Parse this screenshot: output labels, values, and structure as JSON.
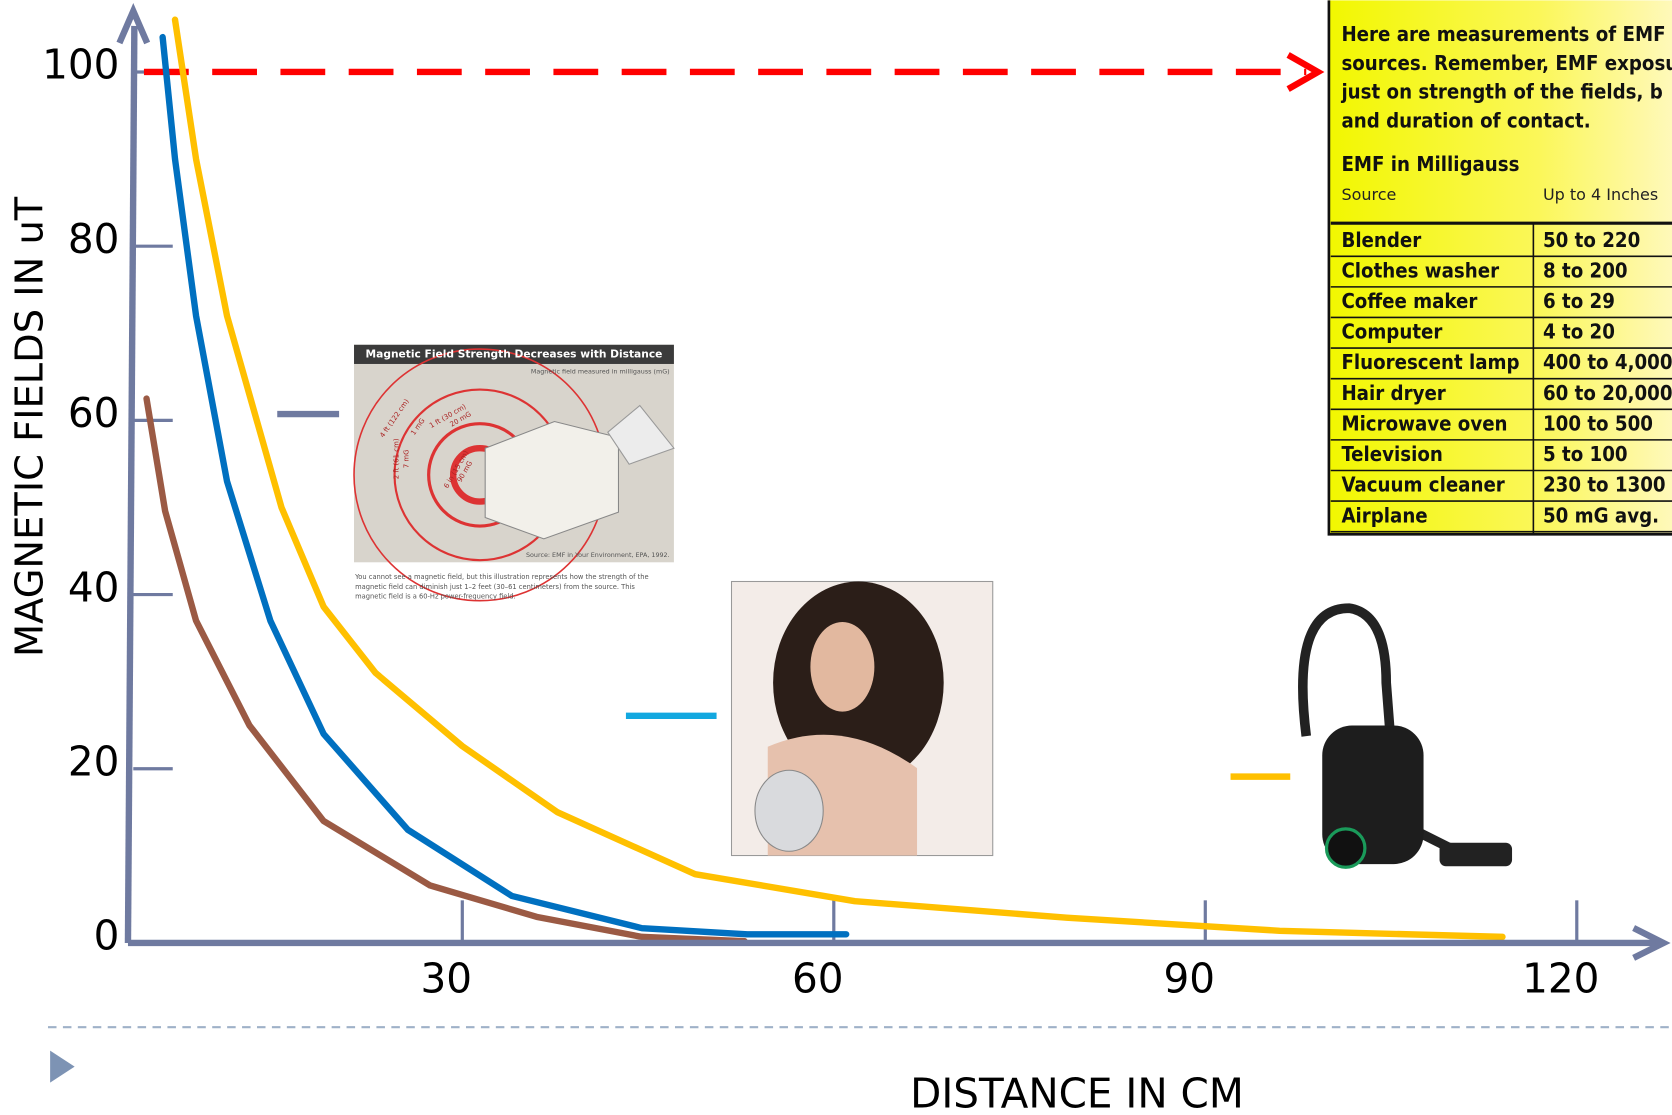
{
  "chart_data": {
    "type": "line",
    "xlabel": "DISTANCE  IN CM",
    "ylabel": "MAGNETIC FIELDS IN uT",
    "xlim": [
      3,
      127
    ],
    "xticks": [
      30,
      60,
      90,
      120
    ],
    "ylim": [
      0,
      107
    ],
    "yticks": [
      0,
      20,
      40,
      60,
      80,
      100
    ],
    "reference_line": {
      "y": 100,
      "color": "#ff0000"
    },
    "axis_color": "#6f7aa0",
    "series": [
      {
        "color": "#0070c0",
        "x": [
          5.8,
          6.8,
          8.5,
          11,
          14.5,
          18.8,
          25.6,
          34,
          44.5,
          53,
          61
        ],
        "values": [
          104,
          90,
          72,
          53,
          37,
          24,
          13,
          5.4,
          1.7,
          1,
          1
        ]
      },
      {
        "color": "#ffc000",
        "x": [
          6.8,
          8.5,
          11,
          15.4,
          18.8,
          23,
          30,
          37.7,
          48.8,
          61.7,
          78.8,
          96,
          114
        ],
        "values": [
          106,
          90,
          72,
          50,
          38.6,
          31,
          22.6,
          15,
          7.9,
          4.8,
          2.9,
          1.4,
          0.7
        ]
      },
      {
        "color": "#9b5a44",
        "x": [
          4.5,
          6,
          8.5,
          12.8,
          18.8,
          27.4,
          36,
          44.5,
          52.8
        ],
        "values": [
          62.5,
          49.6,
          37,
          25,
          14,
          6.6,
          3,
          0.7,
          0.2
        ]
      }
    ]
  },
  "figure": {
    "title": "Magnetic Field Strength Decreases with Distance",
    "subtitle": "Magnetic field measured in milligauss (mG)",
    "rings": [
      "4 ft (122 cm)",
      "1 mG",
      "2 ft (61 cm)",
      "7 mG",
      "1 ft (30 cm)",
      "20 mG",
      "6 in (15 cm)",
      "90 mG"
    ],
    "source": "Source: EMF in Your Environment, EPA, 1992.",
    "caption": [
      "You cannot see a magnetic field, but this illustration represents how the strength of the",
      "magnetic field can diminish just 1–2 feet (30–61 centimeters) from the source. This",
      "magnetic field is a 60-Hz power-frequency field."
    ]
  },
  "emf_table": {
    "intro": [
      "Here are measurements of EMF (",
      "sources. Remember, EMF exposu",
      "just on strength of the fields, b",
      "and duration of contact."
    ],
    "title": "EMF in Milligauss",
    "headers": [
      "Source",
      "Up to 4 Inches"
    ],
    "rows": [
      [
        "Blender",
        "50 to 220"
      ],
      [
        "Clothes washer",
        "8 to 200"
      ],
      [
        "Coffee maker",
        "6 to 29"
      ],
      [
        "Computer",
        "4 to 20"
      ],
      [
        "Fluorescent lamp",
        "400 to 4,000"
      ],
      [
        "Hair dryer",
        "60 to 20,000"
      ],
      [
        "Microwave oven",
        "100 to 500"
      ],
      [
        "Television",
        "5 to 100"
      ],
      [
        "Vacuum cleaner",
        "230 to 1300"
      ],
      [
        "Airplane",
        "50 mG avg."
      ]
    ]
  }
}
